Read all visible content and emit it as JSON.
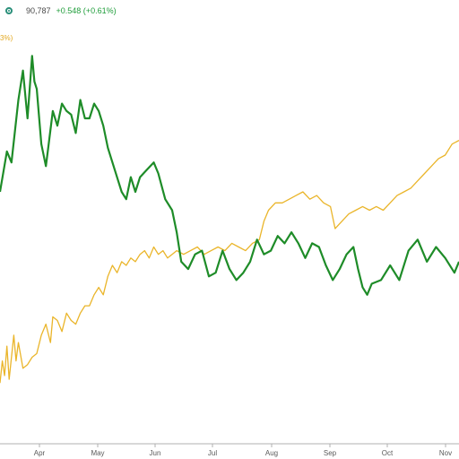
{
  "legend": {
    "value": "90,787",
    "change": "+0.548 (+0.61%)",
    "icon": "circle-dot-icon"
  },
  "yellow_series_tag": "3%)",
  "colors": {
    "green_series": "#1e8c28",
    "yellow_series": "#eab52a",
    "axis": "#b0b0b0",
    "legend_icon": "#2a8f7a"
  },
  "chart_data": {
    "type": "line",
    "title": "",
    "xlabel": "",
    "ylabel": "",
    "x_ticks": [
      "Apr",
      "May",
      "Jun",
      "Jul",
      "Aug",
      "Sep",
      "Oct",
      "Nov"
    ],
    "grid": false,
    "legend": "top-left",
    "value_scale": "relative 0-100 (no y-axis printed)",
    "series": [
      {
        "key": "green",
        "values": [
          [
            0,
            60
          ],
          [
            1.5,
            71
          ],
          [
            2.5,
            68
          ],
          [
            4,
            85
          ],
          [
            5,
            93
          ],
          [
            6,
            80
          ],
          [
            7,
            97
          ],
          [
            7.5,
            90
          ],
          [
            8,
            88
          ],
          [
            9,
            73
          ],
          [
            10,
            67
          ],
          [
            10.5,
            72
          ],
          [
            11.5,
            82
          ],
          [
            12.5,
            78
          ],
          [
            13.5,
            84
          ],
          [
            14.5,
            82
          ],
          [
            15.5,
            81
          ],
          [
            16.5,
            76
          ],
          [
            17.5,
            85
          ],
          [
            18.5,
            80
          ],
          [
            19.5,
            80
          ],
          [
            20.5,
            84
          ],
          [
            21.5,
            82
          ],
          [
            22.5,
            78
          ],
          [
            23.5,
            72
          ],
          [
            25,
            66
          ],
          [
            26.5,
            60
          ],
          [
            27.5,
            58
          ],
          [
            28.5,
            64
          ],
          [
            29.5,
            60
          ],
          [
            30.5,
            64
          ],
          [
            32,
            66
          ],
          [
            33.5,
            68
          ],
          [
            34.5,
            65
          ],
          [
            36,
            58
          ],
          [
            37.5,
            55
          ],
          [
            38.5,
            49
          ],
          [
            39.5,
            41
          ],
          [
            41,
            39
          ],
          [
            42.5,
            43
          ],
          [
            44,
            44
          ],
          [
            45.5,
            37
          ],
          [
            47,
            38
          ],
          [
            48.5,
            44
          ],
          [
            50,
            39
          ],
          [
            51.5,
            36
          ],
          [
            53,
            38
          ],
          [
            54.5,
            41
          ],
          [
            56,
            47
          ],
          [
            57.5,
            43
          ],
          [
            59,
            44
          ],
          [
            60.5,
            48
          ],
          [
            62,
            46
          ],
          [
            63.5,
            49
          ],
          [
            65,
            46
          ],
          [
            66.5,
            42
          ],
          [
            68,
            46
          ],
          [
            69.5,
            45
          ],
          [
            71,
            40
          ],
          [
            72.5,
            36
          ],
          [
            74,
            39
          ],
          [
            75.5,
            43
          ],
          [
            77,
            45
          ],
          [
            78,
            39
          ],
          [
            79,
            34
          ],
          [
            80,
            32
          ],
          [
            81,
            35
          ],
          [
            83,
            36
          ],
          [
            85,
            40
          ],
          [
            87,
            36
          ],
          [
            89,
            44
          ],
          [
            91,
            47
          ],
          [
            93,
            41
          ],
          [
            95,
            45
          ],
          [
            97,
            42
          ],
          [
            99,
            38
          ],
          [
            100,
            41
          ]
        ]
      },
      {
        "key": "yellow",
        "values": [
          [
            0,
            8
          ],
          [
            0.5,
            14
          ],
          [
            1,
            10
          ],
          [
            1.5,
            18
          ],
          [
            2,
            9
          ],
          [
            3,
            21
          ],
          [
            3.5,
            14
          ],
          [
            4,
            19
          ],
          [
            5,
            12
          ],
          [
            6,
            13
          ],
          [
            7,
            15
          ],
          [
            8,
            16
          ],
          [
            9,
            21
          ],
          [
            10,
            24
          ],
          [
            11,
            19
          ],
          [
            11.5,
            26
          ],
          [
            12.5,
            25
          ],
          [
            13.5,
            22
          ],
          [
            14.5,
            27
          ],
          [
            15.5,
            25
          ],
          [
            16.5,
            24
          ],
          [
            17.5,
            27
          ],
          [
            18.5,
            29
          ],
          [
            19.5,
            29
          ],
          [
            20.5,
            32
          ],
          [
            21.5,
            34
          ],
          [
            22.5,
            32
          ],
          [
            23.5,
            37
          ],
          [
            24.5,
            40
          ],
          [
            25.5,
            38
          ],
          [
            26.5,
            41
          ],
          [
            27.5,
            40
          ],
          [
            28.5,
            42
          ],
          [
            29.5,
            41
          ],
          [
            30.5,
            43
          ],
          [
            31.5,
            44
          ],
          [
            32.5,
            42
          ],
          [
            33.5,
            45
          ],
          [
            34.5,
            43
          ],
          [
            35.5,
            44
          ],
          [
            36.5,
            42
          ],
          [
            37.5,
            43
          ],
          [
            38.5,
            44
          ],
          [
            40,
            43
          ],
          [
            41.5,
            44
          ],
          [
            43,
            45
          ],
          [
            44.5,
            43
          ],
          [
            46,
            44
          ],
          [
            47.5,
            45
          ],
          [
            49,
            44
          ],
          [
            50.5,
            46
          ],
          [
            52,
            45
          ],
          [
            53.5,
            44
          ],
          [
            55,
            46
          ],
          [
            56.5,
            47
          ],
          [
            57.5,
            52
          ],
          [
            58.5,
            55
          ],
          [
            60,
            57
          ],
          [
            61.5,
            57
          ],
          [
            63,
            58
          ],
          [
            64.5,
            59
          ],
          [
            66,
            60
          ],
          [
            67.5,
            58
          ],
          [
            69,
            59
          ],
          [
            70.5,
            57
          ],
          [
            72,
            56
          ],
          [
            73,
            50
          ],
          [
            74.5,
            52
          ],
          [
            76,
            54
          ],
          [
            77.5,
            55
          ],
          [
            79,
            56
          ],
          [
            80.5,
            55
          ],
          [
            82,
            56
          ],
          [
            83.5,
            55
          ],
          [
            85,
            57
          ],
          [
            86.5,
            59
          ],
          [
            88,
            60
          ],
          [
            89.5,
            61
          ],
          [
            91,
            63
          ],
          [
            92.5,
            65
          ],
          [
            94,
            67
          ],
          [
            95.5,
            69
          ],
          [
            97,
            70
          ],
          [
            98.5,
            73
          ],
          [
            100,
            74
          ]
        ]
      }
    ]
  }
}
